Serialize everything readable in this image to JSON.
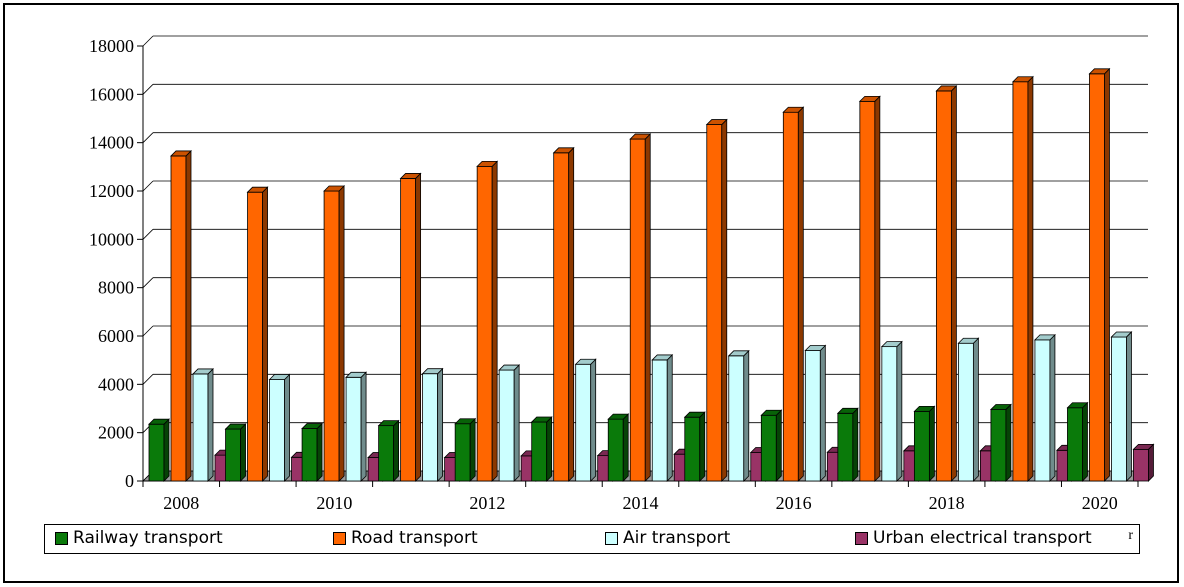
{
  "chart_data": {
    "type": "bar",
    "categories": [
      "2008",
      "2009",
      "2010",
      "2011",
      "2012",
      "2013",
      "2014",
      "2015",
      "2016",
      "2017",
      "2018",
      "2019",
      "2020"
    ],
    "x_tick_labels": [
      "2008",
      "",
      "2010",
      "",
      "2012",
      "",
      "2014",
      "",
      "2016",
      "",
      "2018",
      "",
      "2020"
    ],
    "series": [
      {
        "name": "Railway transport",
        "color": "#0a7a0a",
        "values": [
          2350,
          2150,
          2170,
          2290,
          2370,
          2440,
          2560,
          2640,
          2720,
          2800,
          2880,
          2960,
          3030
        ]
      },
      {
        "name": "Road transport",
        "color": "#ff6600",
        "values": [
          13450,
          11950,
          12000,
          12520,
          13020,
          13580,
          14150,
          14750,
          15260,
          15710,
          16140,
          16520,
          16850
        ]
      },
      {
        "name": "Air transport",
        "color": "#ccffff",
        "values": [
          4430,
          4200,
          4290,
          4440,
          4590,
          4830,
          5010,
          5180,
          5400,
          5560,
          5700,
          5840,
          5960
        ]
      },
      {
        "name": "Urban electrical transport",
        "color": "#993366",
        "values": [
          1070,
          980,
          970,
          970,
          1040,
          1050,
          1110,
          1180,
          1190,
          1250,
          1250,
          1270,
          1310
        ]
      }
    ],
    "ylim": [
      0,
      18000
    ],
    "y_ticks": [
      0,
      2000,
      4000,
      6000,
      8000,
      10000,
      12000,
      14000,
      16000,
      18000
    ],
    "grid": true,
    "legend_position": "bottom",
    "title": "",
    "xlabel": "",
    "ylabel": ""
  },
  "legend_extra_mark": "r"
}
